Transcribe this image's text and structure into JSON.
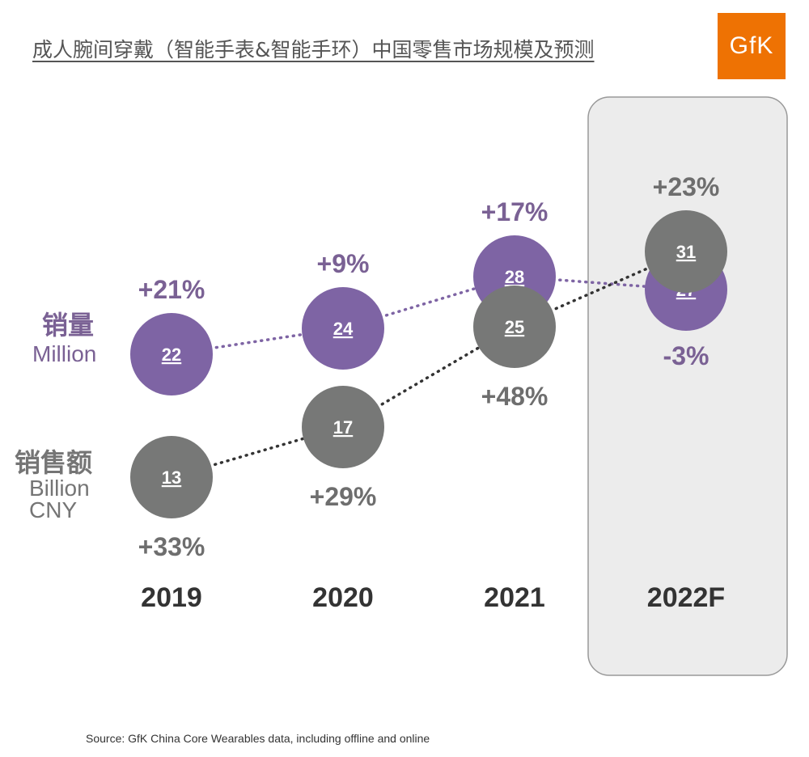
{
  "title": "成人腕间穿戴（智能手表&智能手环）中国零售市场规模及预测",
  "logo_text": "GfK",
  "source": "Source: GfK China Core Wearables data, including offline and online",
  "colors": {
    "units": "#7e64a4",
    "revenue": "#777877",
    "units_label": "#7a6194",
    "revenue_label": "#757575",
    "growth_units": "#7a6194",
    "growth_revenue": "#6e6e6e",
    "year_label": "#333333",
    "highlight_bg": "#ececec",
    "highlight_border": "#999999"
  },
  "series_labels": {
    "units": {
      "cn": "销量",
      "en": "Million"
    },
    "revenue": {
      "cn": "销售额",
      "en1": "Billion",
      "en2": "CNY"
    }
  },
  "chart_data": {
    "type": "scatter",
    "title": "成人腕间穿戴（智能手表&智能手环）中国零售市场规模及预测",
    "categories": [
      "2019",
      "2020",
      "2021",
      "2022F"
    ],
    "highlight_category": "2022F",
    "series": [
      {
        "name": "销量 Million",
        "key": "units",
        "values": [
          22,
          24,
          28,
          27
        ],
        "labels": [
          "22",
          "24",
          "28",
          "27"
        ],
        "growth": [
          "+21%",
          "+9%",
          "+17%",
          "-3%"
        ]
      },
      {
        "name": "销售额 Billion CNY",
        "key": "revenue",
        "values": [
          13,
          17,
          25,
          31
        ],
        "labels": [
          "13",
          "17",
          "25",
          "31"
        ],
        "growth": [
          "+33%",
          "+29%",
          "+48%",
          "+23%"
        ]
      }
    ]
  }
}
